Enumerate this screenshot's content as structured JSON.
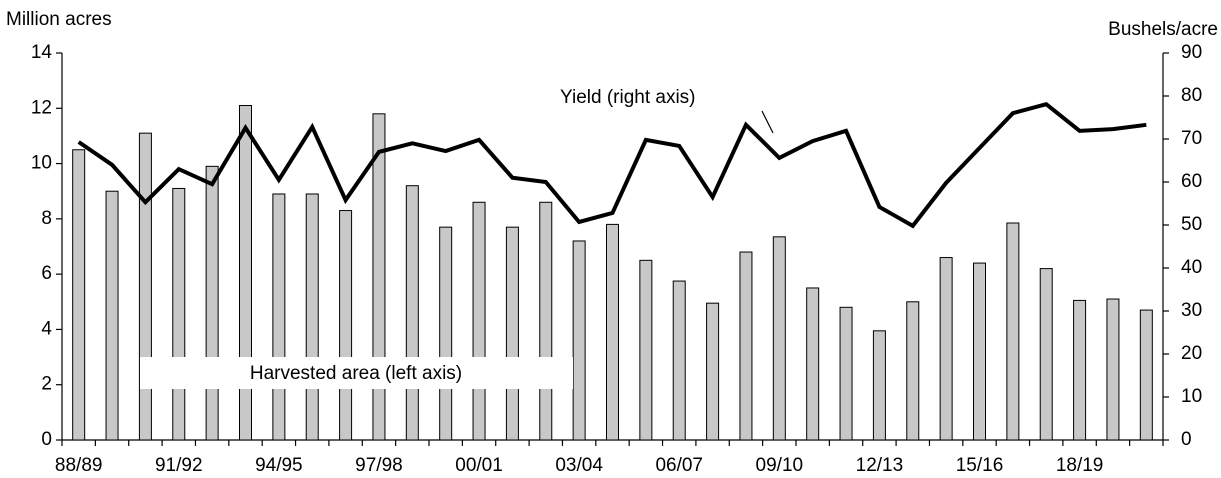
{
  "chart_data": {
    "type": "bar",
    "y_label": "Million acres",
    "y2_label": "Bushels/acre",
    "categories": [
      "88/89",
      null,
      null,
      "91/92",
      null,
      null,
      "94/95",
      null,
      null,
      "97/98",
      null,
      null,
      "00/01",
      null,
      null,
      "03/04",
      null,
      null,
      "06/07",
      null,
      null,
      "09/10",
      null,
      null,
      "12/13",
      null,
      null,
      "15/16",
      null,
      null,
      "18/19",
      null,
      null
    ],
    "series": [
      {
        "name": "Harvested area (left axis)",
        "type": "bar",
        "color": "#c8c8c8",
        "values": [
          10.5,
          9.0,
          11.1,
          9.1,
          9.9,
          12.1,
          8.9,
          8.9,
          8.3,
          11.8,
          9.2,
          7.7,
          8.6,
          7.7,
          8.6,
          7.2,
          7.8,
          6.5,
          5.75,
          4.95,
          6.8,
          7.35,
          5.5,
          4.8,
          3.95,
          5.0,
          6.6,
          6.4,
          7.85,
          6.2,
          5.05,
          5.1,
          4.7
        ]
      },
      {
        "name": "Yield (right axis)",
        "type": "line",
        "axis": "y2",
        "color": "#000000",
        "values": [
          69.3,
          64,
          55.3,
          63,
          59.5,
          72.6,
          60.5,
          72.8,
          55.8,
          67,
          69,
          67.2,
          69.8,
          61,
          60,
          50.7,
          52.8,
          69.8,
          68.4,
          56.5,
          73.3,
          65.6,
          69.5,
          71.9,
          54.2,
          49.8,
          59.8,
          67.9,
          76,
          78.1,
          71.9,
          72.3,
          73.3
        ]
      }
    ],
    "ylim": [
      0,
      14
    ],
    "yticks": [
      0,
      2,
      4,
      6,
      8,
      10,
      12,
      14
    ],
    "y2lim": [
      0,
      90
    ],
    "y2ticks": [
      0,
      10,
      20,
      30,
      40,
      50,
      60,
      70,
      80,
      90
    ],
    "grid": false
  }
}
